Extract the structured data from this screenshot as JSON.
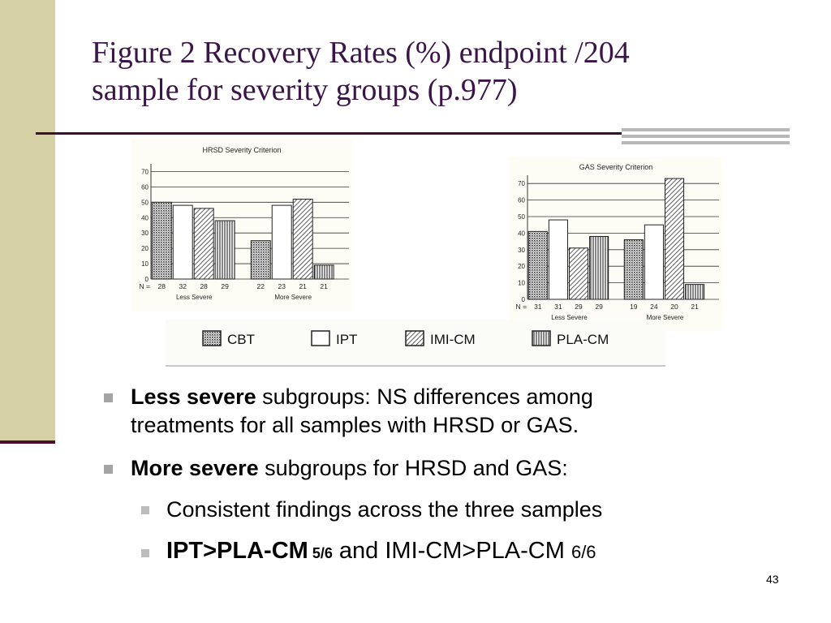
{
  "title": "Figure 2 Recovery Rates (%)  endpoint /204\nsample for severity groups (p.977)",
  "legend": {
    "items": [
      {
        "label": "CBT",
        "pattern": "dots"
      },
      {
        "label": "IPT",
        "pattern": "blank"
      },
      {
        "label": "IMI-CM",
        "pattern": "hatch"
      },
      {
        "label": "PLA-CM",
        "pattern": "vertical"
      }
    ]
  },
  "chart_data": [
    {
      "type": "bar",
      "title": "HRSD Severity Criterion",
      "yticks": [
        0,
        10,
        20,
        30,
        40,
        50,
        60,
        70
      ],
      "ylim": [
        0,
        75
      ],
      "groups": [
        "Less Severe",
        "More Severe"
      ],
      "n_prefix": "N =",
      "series": [
        {
          "name": "CBT",
          "values": [
            50,
            25
          ],
          "n": [
            "28",
            "22"
          ]
        },
        {
          "name": "IPT",
          "values": [
            48,
            48
          ],
          "n": [
            "32",
            "23"
          ]
        },
        {
          "name": "IMI-CM",
          "values": [
            46,
            52
          ],
          "n": [
            "28",
            "21"
          ]
        },
        {
          "name": "PLA-CM",
          "values": [
            38,
            9
          ],
          "n": [
            "29",
            "21"
          ]
        }
      ]
    },
    {
      "type": "bar",
      "title": "GAS Severity Criterion",
      "yticks": [
        0,
        10,
        20,
        30,
        40,
        50,
        60,
        70
      ],
      "ylim": [
        0,
        75
      ],
      "groups": [
        "Less Severe",
        "More Severe"
      ],
      "n_prefix": "N =",
      "series": [
        {
          "name": "CBT",
          "values": [
            41,
            36
          ],
          "n": [
            "31",
            "19"
          ]
        },
        {
          "name": "IPT",
          "values": [
            48,
            45
          ],
          "n": [
            "31",
            "24"
          ]
        },
        {
          "name": "IMI-CM",
          "values": [
            31,
            73
          ],
          "n": [
            "29",
            "20"
          ]
        },
        {
          "name": "PLA-CM",
          "values": [
            38,
            9
          ],
          "n": [
            "29",
            "21"
          ]
        }
      ]
    }
  ],
  "bullets": [
    {
      "bold": "Less severe",
      "text": " subgroups: NS differences among\ntreatments for all samples with HRSD or GAS."
    },
    {
      "bold": "More severe",
      "text": " subgroups for HRSD and GAS:"
    }
  ],
  "sub_bullets": [
    {
      "text": "Consistent findings across the three samples"
    },
    {
      "bold": "IPT>PLA-CM",
      "bold_small": "5/6",
      "text": " and IMI-CM>PLA-CM ",
      "small": "6/6"
    }
  ],
  "page_number": "43"
}
